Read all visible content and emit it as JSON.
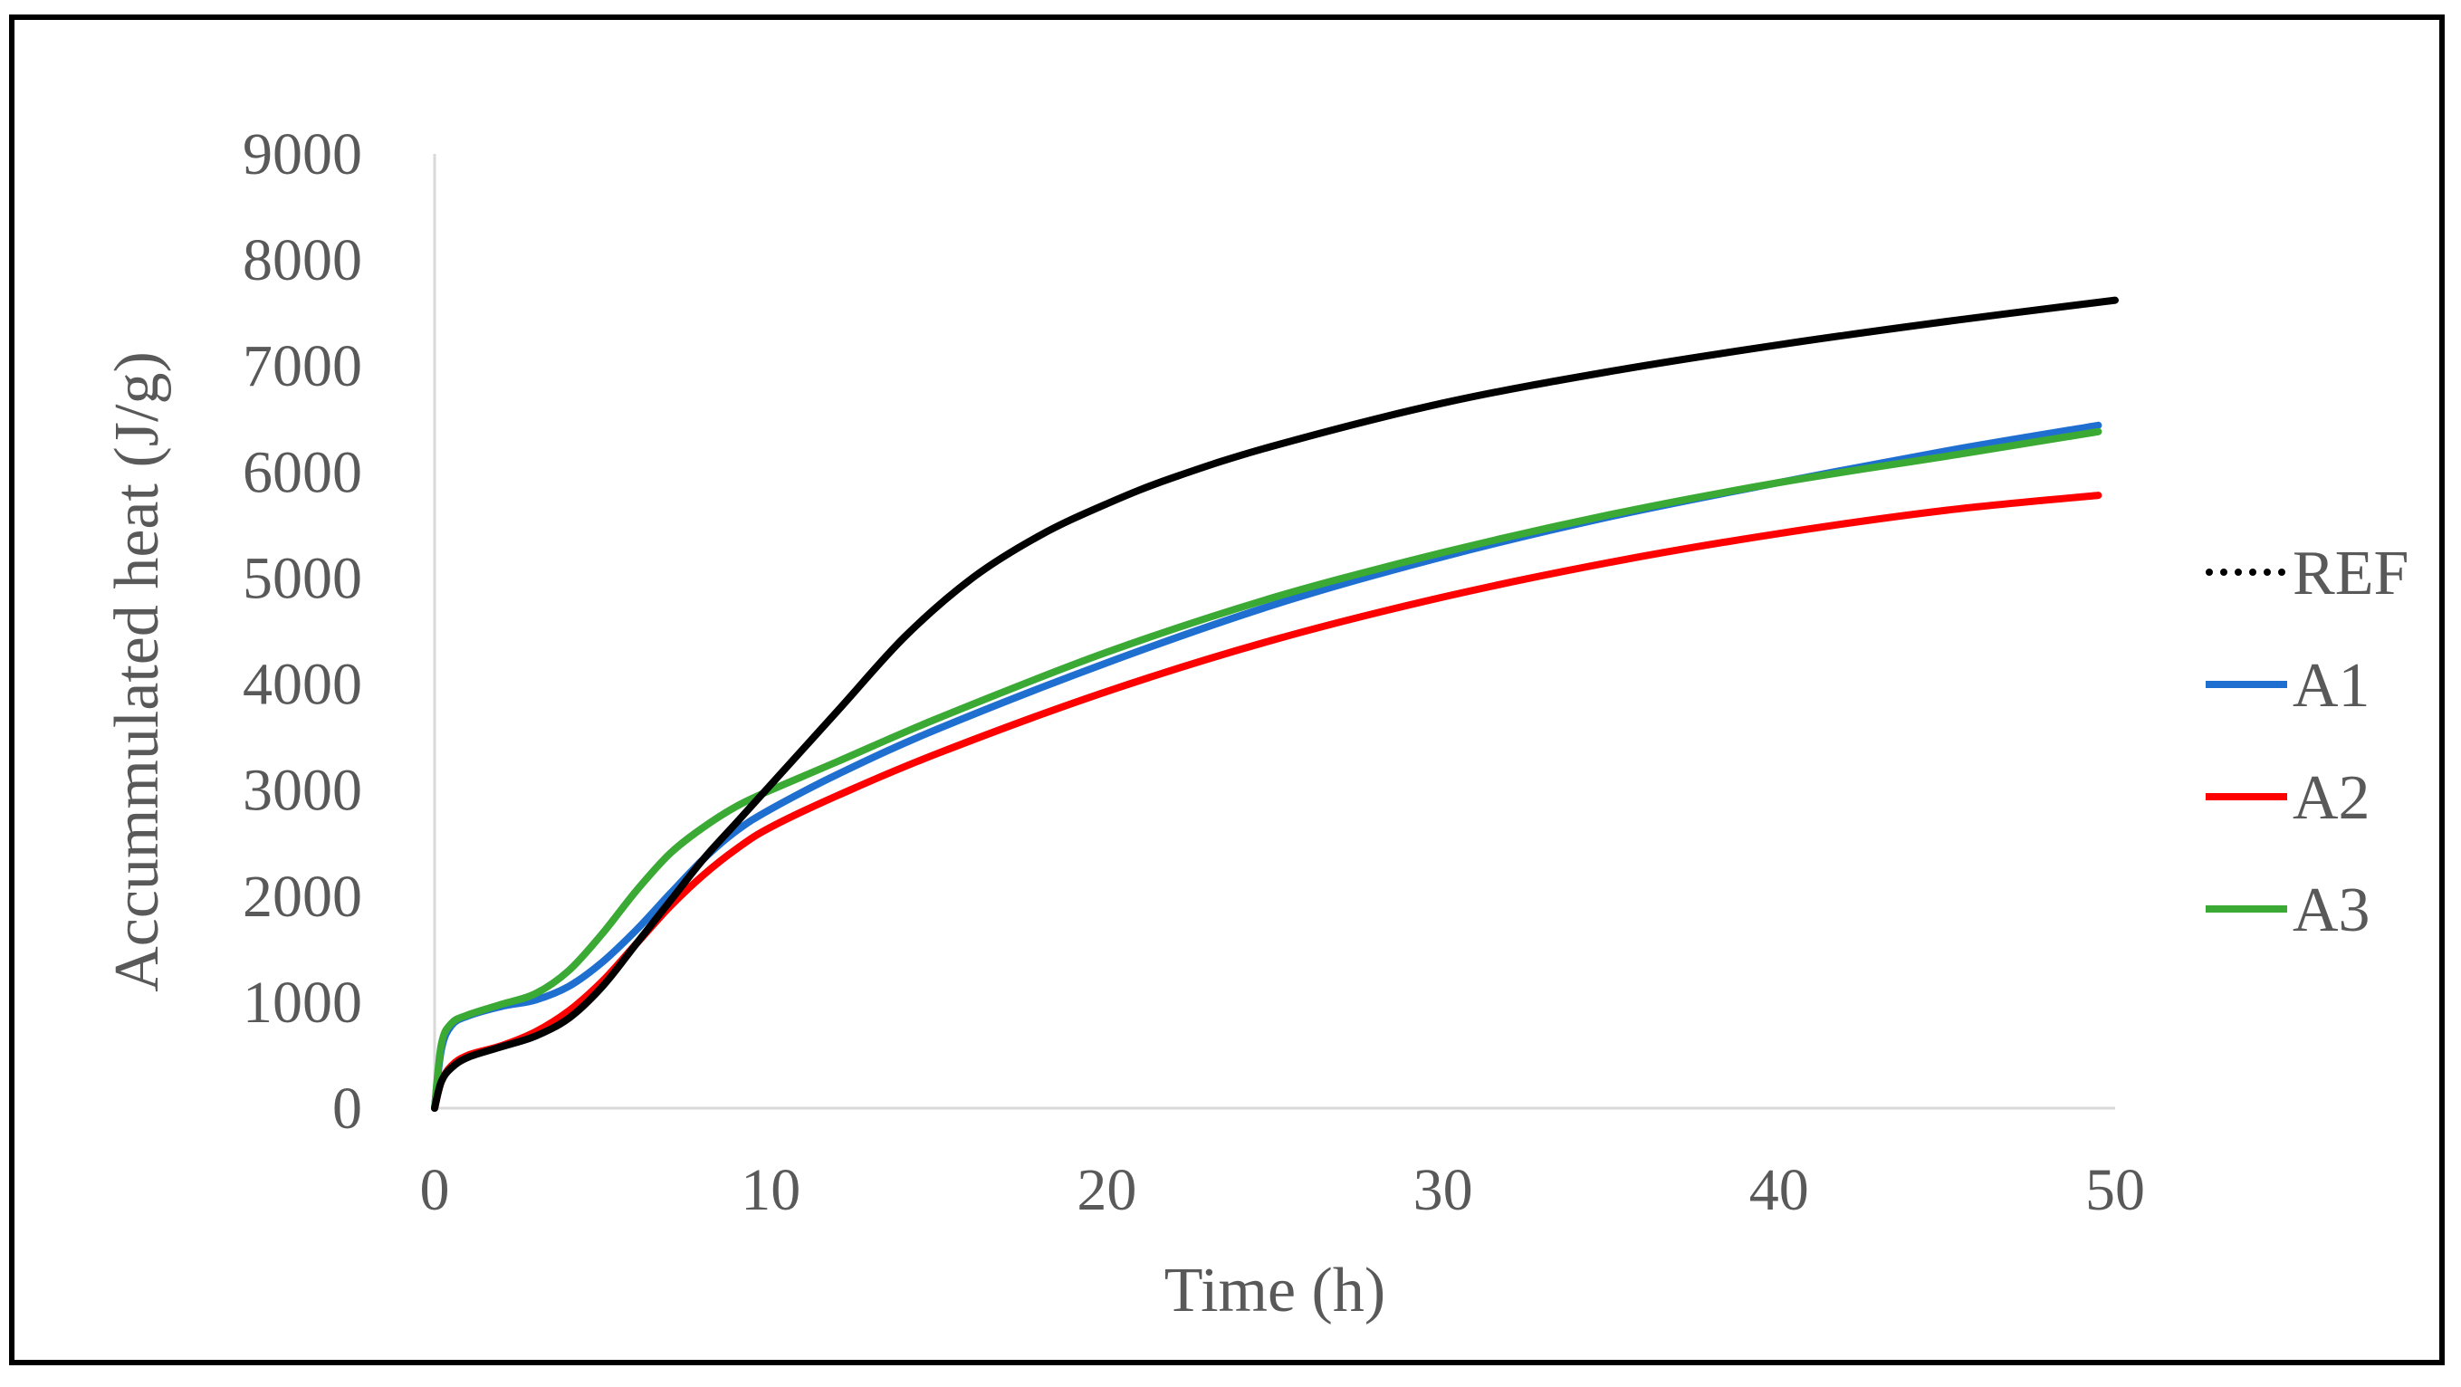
{
  "chart_data": {
    "type": "line",
    "title": "",
    "xlabel": "Time (h)",
    "ylabel": "Accummulated heat (J/g)",
    "xlim": [
      0,
      50
    ],
    "ylim": [
      0,
      9000
    ],
    "x_ticks": [
      0,
      10,
      20,
      30,
      40,
      50
    ],
    "y_ticks": [
      0,
      1000,
      2000,
      3000,
      4000,
      5000,
      6000,
      7000,
      8000,
      9000
    ],
    "grid": false,
    "legend_position": "right",
    "series": [
      {
        "name": "REF",
        "color": "#000000",
        "legend_style": "dotted",
        "x": [
          0,
          0.2,
          0.5,
          1,
          2,
          3,
          4,
          5,
          6,
          7,
          8,
          9,
          10,
          12,
          14,
          16,
          18,
          20,
          22,
          25,
          30,
          35,
          40,
          45,
          50
        ],
        "y": [
          0,
          250,
          380,
          480,
          580,
          680,
          850,
          1150,
          1550,
          1950,
          2350,
          2700,
          3050,
          3750,
          4450,
          5000,
          5400,
          5700,
          5950,
          6250,
          6650,
          6950,
          7200,
          7420,
          7620
        ]
      },
      {
        "name": "A1",
        "color": "#1f6fd1",
        "legend_style": "solid",
        "x": [
          0,
          0.2,
          0.5,
          1,
          2,
          3,
          4,
          5,
          6,
          7,
          8,
          9,
          10,
          12,
          15,
          20,
          25,
          30,
          35,
          40,
          45,
          49.5
        ],
        "y": [
          0,
          550,
          780,
          870,
          960,
          1020,
          1150,
          1380,
          1680,
          2020,
          2350,
          2620,
          2820,
          3150,
          3580,
          4200,
          4750,
          5200,
          5580,
          5900,
          6200,
          6440
        ]
      },
      {
        "name": "A2",
        "color": "#ff0000",
        "legend_style": "solid",
        "x": [
          0,
          0.2,
          0.5,
          1,
          2,
          3,
          4,
          5,
          6,
          7,
          8,
          9,
          10,
          12,
          15,
          20,
          25,
          30,
          35,
          40,
          45,
          49.5
        ],
        "y": [
          0,
          250,
          400,
          500,
          590,
          720,
          920,
          1200,
          1550,
          1900,
          2200,
          2450,
          2650,
          2950,
          3350,
          3930,
          4420,
          4820,
          5150,
          5420,
          5640,
          5780
        ]
      },
      {
        "name": "A3",
        "color": "#3aaa35",
        "legend_style": "solid",
        "x": [
          0,
          0.2,
          0.5,
          1,
          2,
          3,
          4,
          5,
          6,
          7,
          8,
          9,
          10,
          12,
          15,
          20,
          25,
          30,
          35,
          40,
          45,
          49.5
        ],
        "y": [
          0,
          600,
          800,
          880,
          980,
          1080,
          1300,
          1650,
          2050,
          2400,
          2650,
          2850,
          3000,
          3270,
          3680,
          4300,
          4820,
          5240,
          5600,
          5900,
          6150,
          6380
        ]
      }
    ]
  }
}
